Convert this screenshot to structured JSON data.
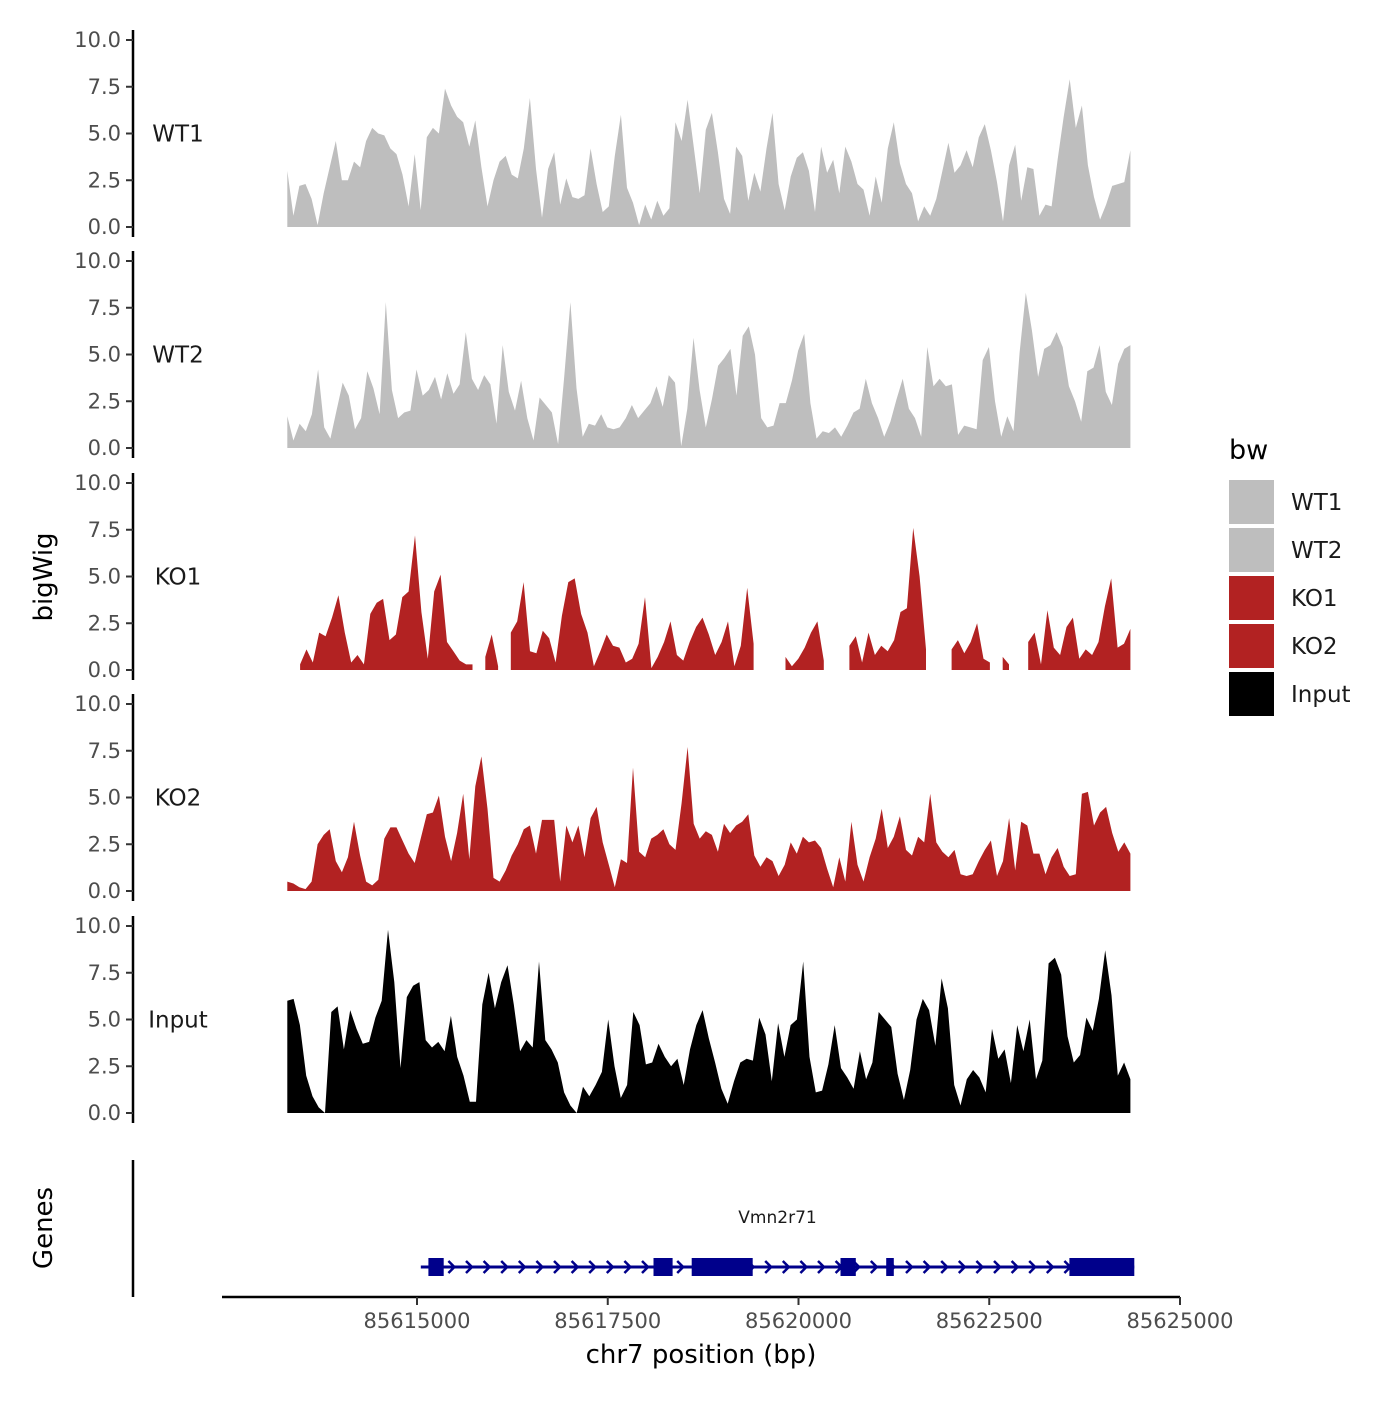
{
  "chart_data": {
    "type": "area",
    "title": "",
    "ylabel": "bigWig",
    "genes_label": "Genes",
    "xlabel": "chr7 position (bp)",
    "xlim": [
      85612000,
      85625200
    ],
    "x_start": 85613300,
    "x_end": 85624350,
    "x_ticks": [
      85615000,
      85617500,
      85620000,
      85622500,
      85625000
    ],
    "x_tick_labels": [
      "85615000",
      "85617500",
      "85620000",
      "85622500",
      "85625000"
    ],
    "ylim": [
      0,
      10
    ],
    "y_ticks": [
      0,
      2.5,
      5,
      7.5,
      10
    ],
    "y_tick_labels": [
      "0.0",
      "2.5",
      "5.0",
      "7.5",
      "10.0"
    ],
    "legend": {
      "title": "bw",
      "position": "right",
      "entries": [
        {
          "label": "WT1",
          "color": "#bebebe"
        },
        {
          "label": "WT2",
          "color": "#bebebe"
        },
        {
          "label": "KO1",
          "color": "#b22222"
        },
        {
          "label": "KO2",
          "color": "#b22222"
        },
        {
          "label": "Input",
          "color": "#000000"
        }
      ]
    },
    "series": [
      {
        "name": "WT1",
        "color": "#bebebe",
        "values": [
          3.0,
          0.6,
          2.2,
          2.3,
          1.5,
          0.1,
          1.8,
          3.2,
          4.6,
          2.5,
          2.5,
          3.5,
          3.2,
          4.6,
          5.3,
          5.0,
          4.9,
          4.2,
          3.9,
          2.8,
          1.1,
          3.9,
          0.9,
          4.8,
          5.3,
          5.0,
          7.4,
          6.5,
          5.9,
          5.6,
          4.3,
          5.7,
          3.2,
          1.1,
          2.5,
          3.5,
          3.8,
          2.8,
          2.6,
          4.2,
          6.9,
          3.1,
          0.5,
          3.1,
          4.0,
          1.2,
          2.6,
          1.6,
          1.5,
          1.7,
          4.2,
          2.3,
          0.8,
          1.1,
          3.8,
          6.0,
          2.1,
          1.3,
          0.1,
          1.2,
          0.4,
          1.4,
          0.6,
          1.0,
          5.6,
          4.6,
          6.8,
          4.3,
          1.8,
          5.2,
          6.1,
          4.0,
          1.5,
          0.7,
          4.3,
          3.8,
          1.4,
          2.9,
          1.9,
          4.2,
          6.1,
          2.3,
          0.9,
          2.7,
          3.7,
          4.0,
          3.0,
          0.8,
          4.3,
          2.9,
          3.6,
          1.8,
          4.3,
          3.5,
          2.3,
          2.0,
          0.6,
          2.7,
          1.3,
          4.2,
          5.6,
          3.4,
          2.3,
          1.8,
          0.3,
          1.1,
          0.6,
          1.5,
          3.0,
          4.5,
          2.9,
          3.3,
          4.1,
          3.2,
          4.8,
          5.5,
          4.1,
          2.4,
          0.3,
          3.3,
          4.4,
          1.4,
          3.2,
          3.1,
          0.6,
          1.2,
          1.1,
          3.6,
          5.9,
          7.9,
          5.3,
          6.5,
          3.3,
          1.6,
          0.4,
          1.2,
          2.2,
          2.3,
          2.4,
          4.1
        ]
      },
      {
        "name": "WT2",
        "color": "#bebebe",
        "values": [
          1.7,
          0.4,
          1.3,
          0.9,
          1.8,
          4.2,
          1.1,
          0.5,
          2.0,
          3.5,
          2.8,
          1.0,
          1.6,
          4.1,
          3.2,
          1.8,
          7.8,
          3.1,
          1.6,
          1.9,
          2.0,
          4.2,
          2.8,
          3.1,
          3.8,
          2.6,
          4.0,
          2.9,
          3.4,
          6.2,
          3.7,
          3.1,
          3.9,
          3.4,
          1.3,
          5.5,
          3.0,
          2.0,
          3.6,
          1.6,
          0.4,
          2.7,
          2.3,
          1.9,
          0.2,
          3.8,
          7.8,
          3.2,
          0.6,
          1.3,
          1.2,
          1.8,
          1.1,
          1.0,
          1.1,
          1.6,
          2.3,
          1.6,
          2.0,
          2.4,
          3.3,
          2.2,
          3.9,
          3.5,
          0.1,
          2.1,
          5.9,
          3.1,
          1.1,
          2.6,
          4.4,
          4.8,
          5.3,
          2.8,
          6.0,
          6.5,
          5.0,
          1.6,
          1.1,
          1.2,
          2.4,
          2.4,
          3.6,
          5.2,
          6.1,
          2.4,
          0.5,
          0.9,
          0.8,
          1.1,
          0.6,
          1.2,
          1.9,
          2.1,
          3.7,
          2.4,
          1.6,
          0.6,
          1.4,
          2.6,
          3.7,
          2.1,
          1.6,
          0.6,
          5.4,
          3.3,
          3.7,
          3.3,
          3.4,
          0.7,
          1.2,
          1.1,
          1.0,
          4.7,
          5.4,
          2.5,
          0.6,
          1.7,
          0.9,
          5.1,
          8.3,
          6.3,
          3.8,
          5.3,
          5.5,
          6.2,
          5.4,
          3.3,
          2.5,
          1.4,
          4.1,
          4.3,
          5.5,
          3.0,
          2.3,
          4.5,
          5.3,
          5.5
        ]
      },
      {
        "name": "KO1",
        "color": "#b22222",
        "values": [
          1.8,
          null,
          0.3,
          1.1,
          0.4,
          2.0,
          1.8,
          2.8,
          4.0,
          2.0,
          0.4,
          0.8,
          0.3,
          3.0,
          3.6,
          3.8,
          1.6,
          1.9,
          3.9,
          4.2,
          7.2,
          3.1,
          0.6,
          4.2,
          5.1,
          1.5,
          1.0,
          0.5,
          0.3,
          0.3,
          null,
          0.7,
          1.9,
          0.2,
          null,
          2.0,
          2.6,
          4.7,
          1.0,
          0.9,
          2.1,
          1.7,
          0.4,
          2.9,
          4.7,
          4.9,
          3.0,
          2.0,
          0.2,
          1.0,
          1.9,
          1.3,
          1.2,
          0.4,
          0.6,
          1.4,
          3.9,
          0.1,
          0.7,
          1.5,
          2.6,
          0.8,
          0.5,
          1.5,
          2.3,
          2.8,
          1.9,
          0.8,
          1.5,
          2.6,
          0.2,
          1.3,
          4.4,
          1.4,
          null,
          null,
          null,
          null,
          0.7,
          0.2,
          0.6,
          1.2,
          2.0,
          2.6,
          0.5,
          null,
          null,
          null,
          1.3,
          1.8,
          0.4,
          2.0,
          0.8,
          1.3,
          1.0,
          1.6,
          3.1,
          3.3,
          7.6,
          5.0,
          1.1,
          null,
          null,
          null,
          1.1,
          1.6,
          0.9,
          1.5,
          2.5,
          0.6,
          0.4,
          null,
          0.7,
          0.3,
          null,
          null,
          1.5,
          2.0,
          0.3,
          3.2,
          1.2,
          0.8,
          2.3,
          2.8,
          0.6,
          1.1,
          0.8,
          1.5,
          3.4,
          4.9,
          1.2,
          1.4,
          2.2
        ]
      },
      {
        "name": "KO2",
        "color": "#b22222",
        "values": [
          0.5,
          0.4,
          0.2,
          0.1,
          0.5,
          2.5,
          3.0,
          3.3,
          1.6,
          1.0,
          1.8,
          3.7,
          1.9,
          0.5,
          0.3,
          0.6,
          2.8,
          3.4,
          3.4,
          2.7,
          2.0,
          1.5,
          2.8,
          4.1,
          4.2,
          5.1,
          2.9,
          1.6,
          3.1,
          5.2,
          1.7,
          5.6,
          7.2,
          4.4,
          0.7,
          0.5,
          1.1,
          1.9,
          2.5,
          3.3,
          3.5,
          2.0,
          3.8,
          3.8,
          3.8,
          0.5,
          3.5,
          2.6,
          3.5,
          1.8,
          3.9,
          4.5,
          2.6,
          1.4,
          0.2,
          1.7,
          1.5,
          6.6,
          2.1,
          1.8,
          2.8,
          3.0,
          3.3,
          2.5,
          2.2,
          4.7,
          7.7,
          3.6,
          2.8,
          3.2,
          3.0,
          2.1,
          3.6,
          3.1,
          3.5,
          3.7,
          4.1,
          1.9,
          1.3,
          1.8,
          1.6,
          0.8,
          1.4,
          2.6,
          2.0,
          2.9,
          2.6,
          2.7,
          2.3,
          1.2,
          0.2,
          1.8,
          0.5,
          3.7,
          1.4,
          0.5,
          1.8,
          2.8,
          4.4,
          2.3,
          2.9,
          4.0,
          2.2,
          1.9,
          2.9,
          2.6,
          5.2,
          2.6,
          2.1,
          1.8,
          2.2,
          0.9,
          0.8,
          0.9,
          1.6,
          2.2,
          2.7,
          0.8,
          1.6,
          3.9,
          1.1,
          3.7,
          3.5,
          2.0,
          2.0,
          0.9,
          1.8,
          2.3,
          1.3,
          0.8,
          0.9,
          5.2,
          5.3,
          3.5,
          4.2,
          4.5,
          3.1,
          2.1,
          2.6,
          2.0
        ]
      },
      {
        "name": "Input",
        "color": "#000000",
        "values": [
          6.0,
          6.1,
          4.7,
          2.0,
          0.9,
          0.3,
          0.0,
          5.4,
          5.7,
          3.4,
          5.5,
          4.5,
          3.7,
          3.8,
          5.1,
          6.0,
          9.8,
          7.0,
          2.4,
          6.2,
          6.8,
          7.0,
          3.9,
          3.5,
          3.8,
          3.3,
          5.2,
          3.0,
          2.0,
          0.6,
          0.6,
          5.8,
          7.5,
          5.6,
          7.0,
          7.9,
          5.8,
          3.3,
          3.9,
          3.5,
          8.1,
          3.9,
          3.4,
          2.7,
          1.1,
          0.4,
          0.0,
          1.4,
          0.9,
          1.5,
          2.2,
          5.0,
          2.5,
          0.8,
          1.5,
          5.4,
          4.7,
          2.6,
          2.7,
          3.7,
          3.0,
          2.5,
          2.9,
          1.5,
          3.4,
          4.7,
          5.5,
          4.0,
          2.7,
          1.3,
          0.5,
          1.7,
          2.7,
          2.9,
          2.8,
          5.1,
          4.2,
          1.7,
          4.8,
          3.0,
          4.7,
          5.0,
          8.1,
          3.0,
          1.1,
          1.2,
          2.6,
          4.7,
          2.4,
          1.9,
          1.3,
          3.3,
          1.8,
          2.7,
          5.4,
          5.0,
          4.6,
          2.1,
          0.7,
          2.3,
          5.0,
          6.1,
          5.5,
          3.6,
          7.2,
          5.6,
          1.5,
          0.4,
          1.8,
          2.3,
          1.9,
          1.1,
          4.5,
          2.9,
          3.4,
          1.6,
          4.7,
          3.3,
          5.0,
          1.8,
          2.8,
          8.0,
          8.3,
          7.4,
          4.1,
          2.7,
          3.1,
          5.1,
          4.4,
          6.1,
          8.7,
          6.3,
          2.0,
          2.7,
          1.8
        ]
      }
    ],
    "genes": [
      {
        "name": "Vmn2r71",
        "color": "#00008b",
        "strand": "+",
        "start": 85615050,
        "end": 85624400,
        "exons": [
          [
            85615150,
            85615350
          ],
          [
            85618100,
            85618350
          ],
          [
            85618600,
            85619400
          ],
          [
            85620550,
            85620750
          ],
          [
            85621150,
            85621250
          ],
          [
            85623550,
            85624400
          ]
        ]
      }
    ]
  }
}
